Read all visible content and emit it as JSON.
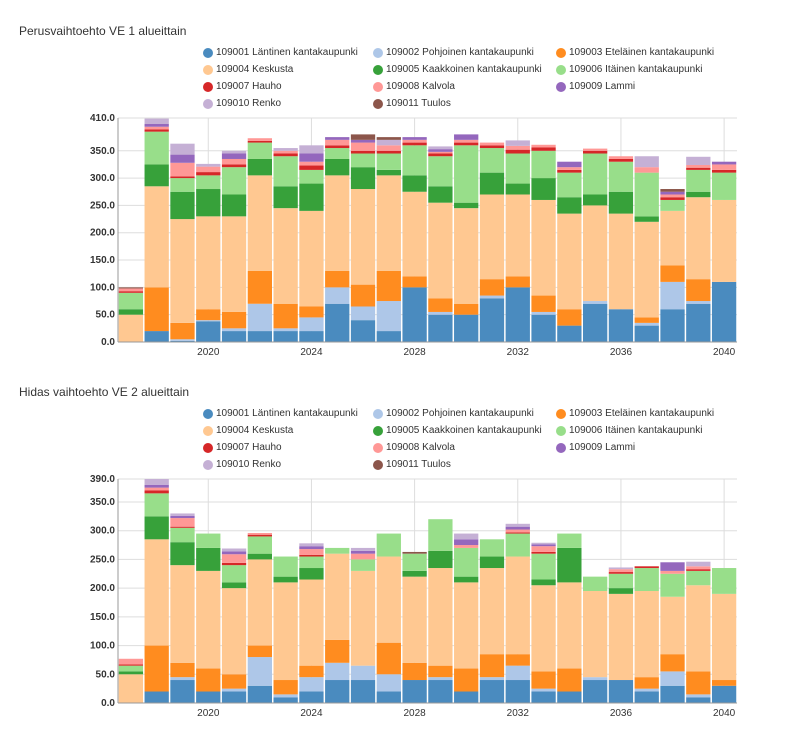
{
  "colors": [
    "#4a8bbf",
    "#aec7e8",
    "#ff8c1f",
    "#ffc891",
    "#37a13a",
    "#98de8a",
    "#d62728",
    "#ff9896",
    "#9467bd",
    "#c5b0d5",
    "#8c564b"
  ],
  "chart_data": [
    {
      "type": "bar",
      "stacked": true,
      "title": "Perusvaihtoehto VE 1 alueittain",
      "legend_position": "top",
      "x_tick_labels": [
        "2020",
        "2024",
        "2028",
        "2032",
        "2036",
        "2040"
      ],
      "y_ticks": [
        "0.0",
        "50.0",
        "100.0",
        "150.0",
        "200.0",
        "250.0",
        "300.0",
        "350.0",
        "410.0"
      ],
      "ylim": [
        0,
        410
      ],
      "grid": true,
      "categories": [
        "2017",
        "2018",
        "2019",
        "2020",
        "2021",
        "2022",
        "2023",
        "2024",
        "2025",
        "2026",
        "2027",
        "2028",
        "2029",
        "2030",
        "2031",
        "2032",
        "2033",
        "2034",
        "2035",
        "2036",
        "2037",
        "2038",
        "2039",
        "2040"
      ],
      "series": [
        {
          "name": "109001 Läntinen kantakaupunki",
          "values": [
            0,
            20,
            2,
            38,
            20,
            20,
            20,
            20,
            70,
            40,
            20,
            100,
            50,
            50,
            80,
            100,
            50,
            30,
            70,
            60,
            30,
            60,
            70,
            110
          ]
        },
        {
          "name": "109002 Pohjoinen kantakaupunki",
          "values": [
            0,
            0,
            3,
            2,
            5,
            50,
            5,
            25,
            30,
            25,
            55,
            0,
            5,
            0,
            5,
            0,
            5,
            0,
            5,
            0,
            5,
            50,
            5,
            0
          ]
        },
        {
          "name": "109003 Eteläinen kantakaupunki",
          "values": [
            0,
            80,
            30,
            20,
            30,
            60,
            45,
            20,
            30,
            40,
            55,
            20,
            25,
            20,
            30,
            20,
            30,
            30,
            0,
            0,
            10,
            30,
            40,
            0
          ]
        },
        {
          "name": "109004 Keskusta",
          "values": [
            50,
            185,
            190,
            170,
            175,
            175,
            175,
            175,
            175,
            175,
            175,
            155,
            175,
            175,
            155,
            150,
            175,
            175,
            175,
            175,
            175,
            100,
            150,
            150
          ]
        },
        {
          "name": "109005 Kaakkoinen kantakaupunki",
          "values": [
            10,
            40,
            50,
            50,
            40,
            30,
            40,
            50,
            30,
            40,
            10,
            30,
            30,
            10,
            40,
            20,
            40,
            30,
            20,
            40,
            10,
            0,
            10,
            0
          ]
        },
        {
          "name": "109006 Itäinen kantakaupunki",
          "values": [
            30,
            60,
            25,
            25,
            50,
            30,
            55,
            25,
            20,
            25,
            30,
            55,
            55,
            105,
            45,
            55,
            50,
            45,
            75,
            55,
            80,
            20,
            40,
            50
          ]
        },
        {
          "name": "109007 Hauho",
          "values": [
            3,
            4,
            3,
            6,
            5,
            3,
            5,
            8,
            5,
            5,
            5,
            5,
            5,
            5,
            5,
            7,
            6,
            5,
            5,
            5,
            0,
            5,
            4,
            5
          ]
        },
        {
          "name": "109008 Kalvola",
          "values": [
            5,
            5,
            25,
            10,
            10,
            5,
            5,
            7,
            10,
            15,
            10,
            5,
            3,
            5,
            5,
            7,
            5,
            5,
            4,
            5,
            10,
            5,
            5,
            10
          ]
        },
        {
          "name": "109009 Lammi",
          "values": [
            0,
            5,
            15,
            0,
            10,
            0,
            0,
            15,
            5,
            5,
            0,
            5,
            5,
            10,
            0,
            0,
            0,
            10,
            0,
            0,
            0,
            5,
            0,
            5
          ]
        },
        {
          "name": "109010 Renko",
          "values": [
            0,
            10,
            20,
            5,
            5,
            0,
            5,
            15,
            0,
            0,
            10,
            0,
            5,
            0,
            0,
            10,
            0,
            0,
            0,
            0,
            20,
            0,
            15,
            0
          ]
        },
        {
          "name": "109011 Tuulos",
          "values": [
            2,
            0,
            0,
            0,
            0,
            0,
            0,
            0,
            0,
            10,
            5,
            0,
            0,
            0,
            0,
            0,
            0,
            0,
            0,
            0,
            0,
            5,
            0,
            0
          ]
        }
      ]
    },
    {
      "type": "bar",
      "stacked": true,
      "title": "Hidas vaihtoehto VE 2 alueittain",
      "legend_position": "top",
      "x_tick_labels": [
        "2020",
        "2024",
        "2028",
        "2032",
        "2036",
        "2040"
      ],
      "y_ticks": [
        "0.0",
        "50.0",
        "100.0",
        "150.0",
        "200.0",
        "250.0",
        "300.0",
        "350.0",
        "390.0"
      ],
      "ylim": [
        0,
        390
      ],
      "grid": true,
      "categories": [
        "2017",
        "2018",
        "2019",
        "2020",
        "2021",
        "2022",
        "2023",
        "2024",
        "2025",
        "2026",
        "2027",
        "2028",
        "2029",
        "2030",
        "2031",
        "2032",
        "2033",
        "2034",
        "2035",
        "2036",
        "2037",
        "2038",
        "2039",
        "2040"
      ],
      "series": [
        {
          "name": "109001 Läntinen kantakaupunki",
          "values": [
            0,
            20,
            40,
            20,
            20,
            30,
            10,
            20,
            40,
            40,
            20,
            40,
            40,
            20,
            40,
            40,
            20,
            20,
            40,
            40,
            20,
            30,
            10,
            30
          ]
        },
        {
          "name": "109002 Pohjoinen kantakaupunki",
          "values": [
            0,
            0,
            5,
            0,
            5,
            50,
            5,
            25,
            30,
            25,
            30,
            0,
            5,
            0,
            5,
            25,
            5,
            0,
            5,
            0,
            5,
            25,
            5,
            0
          ]
        },
        {
          "name": "109003 Eteläinen kantakaupunki",
          "values": [
            0,
            80,
            25,
            40,
            25,
            20,
            25,
            20,
            40,
            0,
            55,
            30,
            20,
            40,
            40,
            20,
            30,
            40,
            0,
            0,
            20,
            30,
            40,
            10
          ]
        },
        {
          "name": "109004 Keskusta",
          "values": [
            50,
            185,
            170,
            170,
            150,
            150,
            170,
            150,
            150,
            165,
            150,
            150,
            170,
            150,
            150,
            170,
            150,
            150,
            150,
            150,
            150,
            100,
            150,
            150
          ]
        },
        {
          "name": "109005 Kaakkoinen kantakaupunki",
          "values": [
            5,
            40,
            40,
            40,
            10,
            10,
            10,
            20,
            0,
            0,
            0,
            10,
            30,
            10,
            20,
            0,
            10,
            60,
            0,
            10,
            0,
            0,
            0,
            0
          ]
        },
        {
          "name": "109006 Itäinen kantakaupunki",
          "values": [
            10,
            40,
            25,
            25,
            30,
            30,
            35,
            20,
            10,
            20,
            40,
            30,
            55,
            50,
            30,
            40,
            45,
            25,
            25,
            25,
            40,
            40,
            25,
            45
          ]
        },
        {
          "name": "109007 Hauho",
          "values": [
            2,
            5,
            2,
            0,
            4,
            3,
            0,
            3,
            0,
            0,
            0,
            0,
            0,
            0,
            0,
            2,
            3,
            0,
            0,
            3,
            3,
            0,
            3,
            0
          ]
        },
        {
          "name": "109008 Kalvola",
          "values": [
            10,
            5,
            15,
            0,
            15,
            3,
            0,
            10,
            0,
            10,
            0,
            0,
            0,
            5,
            0,
            5,
            10,
            0,
            0,
            5,
            0,
            5,
            5,
            0
          ]
        },
        {
          "name": "109009 Lammi",
          "values": [
            0,
            5,
            4,
            0,
            5,
            0,
            0,
            5,
            0,
            5,
            0,
            0,
            0,
            10,
            0,
            5,
            3,
            0,
            0,
            0,
            0,
            15,
            0,
            0
          ]
        },
        {
          "name": "109010 Renko",
          "values": [
            0,
            10,
            4,
            0,
            5,
            0,
            0,
            5,
            0,
            5,
            0,
            0,
            0,
            10,
            0,
            5,
            3,
            0,
            0,
            3,
            0,
            0,
            8,
            0
          ]
        },
        {
          "name": "109011 Tuulos",
          "values": [
            0,
            0,
            0,
            0,
            0,
            0,
            0,
            0,
            0,
            0,
            0,
            3,
            0,
            0,
            0,
            0,
            0,
            0,
            0,
            0,
            0,
            0,
            0,
            0
          ]
        }
      ]
    }
  ]
}
